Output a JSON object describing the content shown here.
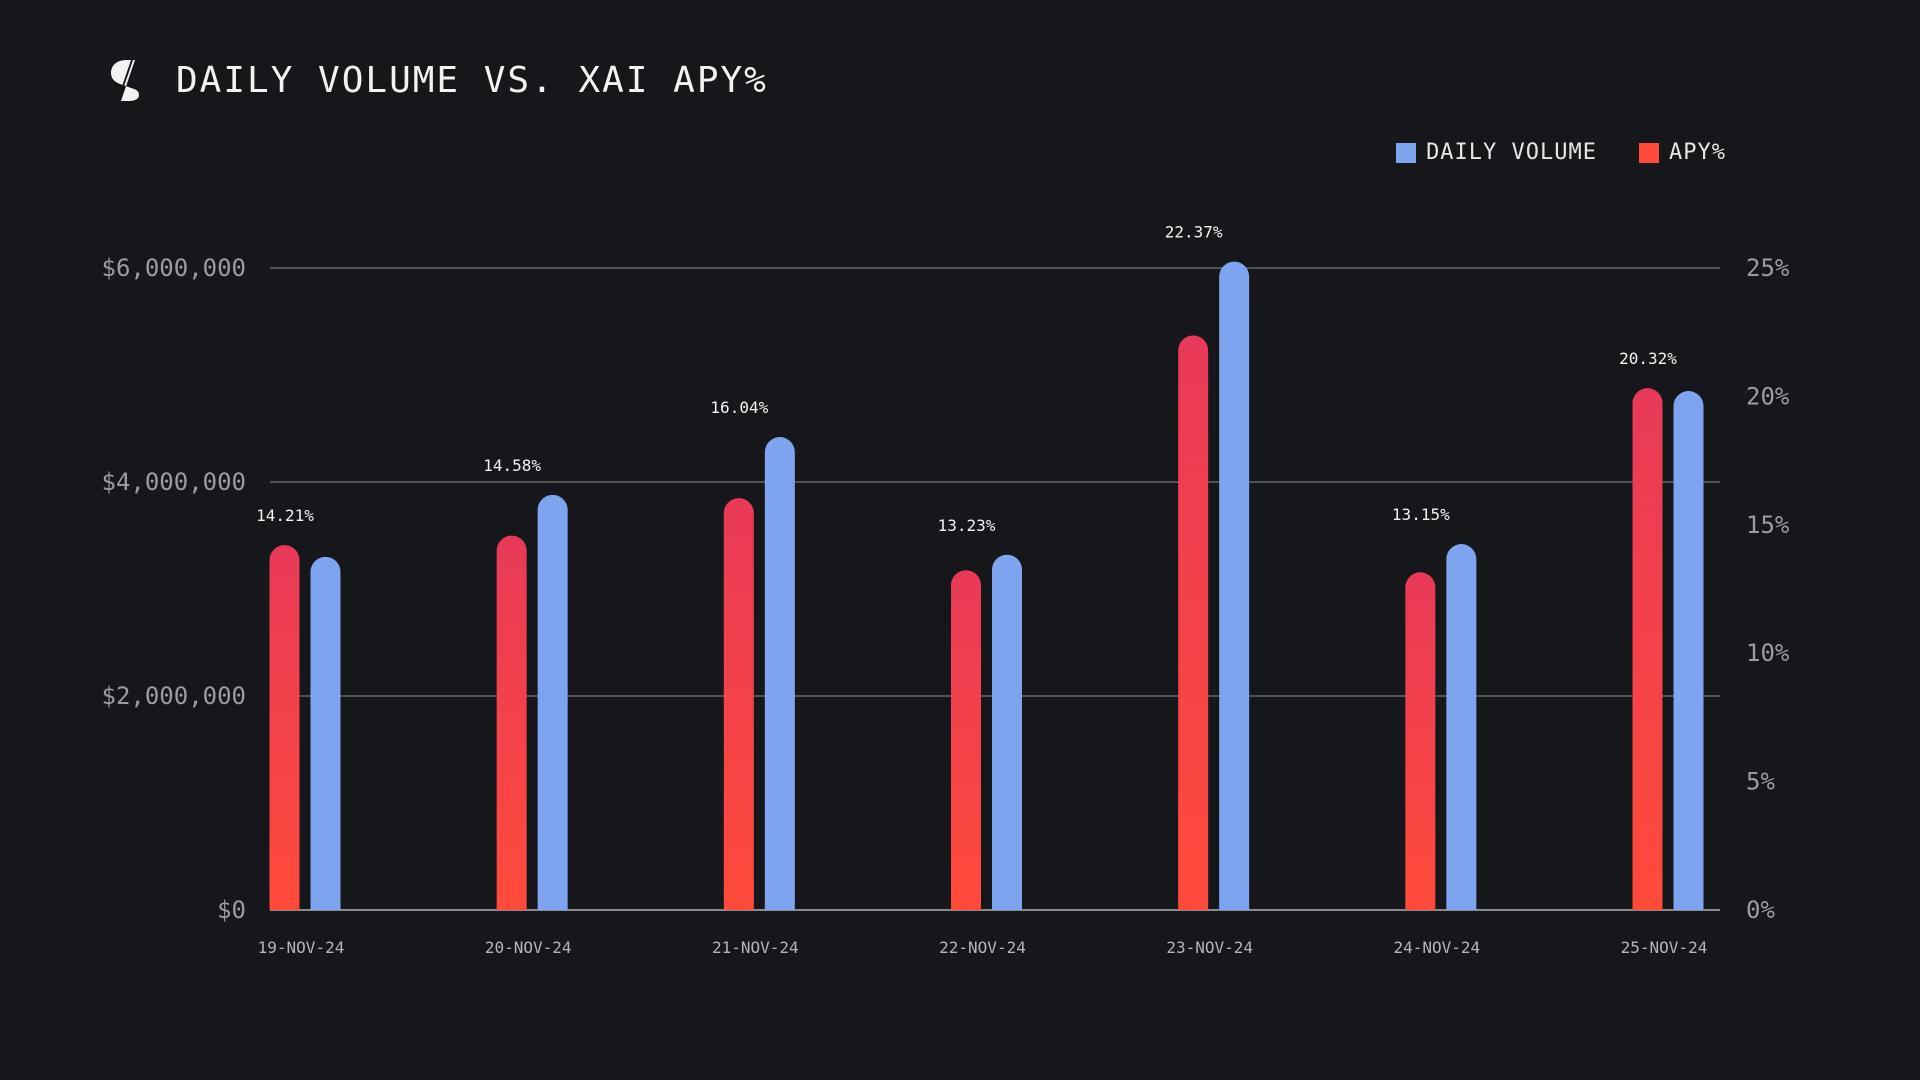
{
  "header": {
    "title": "DAILY VOLUME VS. XAI APY%"
  },
  "legend": {
    "volume_label": "DAILY VOLUME",
    "apy_label": "APY%"
  },
  "colors": {
    "background": "#16171b",
    "volume": "#7fa4ef",
    "apy_top": "#e83a58",
    "apy_bottom": "#ff4a3a",
    "grid": "#8a8c92"
  },
  "chart_data": {
    "type": "bar",
    "title": "DAILY VOLUME VS. XAI APY%",
    "categories": [
      "19-NOV-24",
      "20-NOV-24",
      "21-NOV-24",
      "22-NOV-24",
      "23-NOV-24",
      "24-NOV-24",
      "25-NOV-24"
    ],
    "series": [
      {
        "name": "APY%",
        "axis": "right",
        "values": [
          14.21,
          14.58,
          16.04,
          13.23,
          22.37,
          13.15,
          20.32
        ],
        "labels": [
          "14.21%",
          "14.58%",
          "16.04%",
          "13.23%",
          "22.37%",
          "13.15%",
          "20.32%"
        ]
      },
      {
        "name": "DAILY VOLUME",
        "axis": "left",
        "values": [
          3300000,
          3880000,
          4420000,
          3320000,
          6060000,
          3420000,
          4850000
        ]
      }
    ],
    "left_axis": {
      "ticks": [
        0,
        2000000,
        4000000,
        6000000
      ],
      "tick_labels": [
        "$0",
        "$2,000,000",
        "$4,000,000",
        "$6,000,000"
      ],
      "ylim": [
        0,
        6000000
      ]
    },
    "right_axis": {
      "ticks": [
        0,
        5,
        10,
        15,
        20,
        25
      ],
      "tick_labels": [
        "0%",
        "5%",
        "10%",
        "15%",
        "20%",
        "25%"
      ],
      "ylim": [
        0,
        25
      ]
    },
    "legend_position": "top-right",
    "grid": true
  }
}
